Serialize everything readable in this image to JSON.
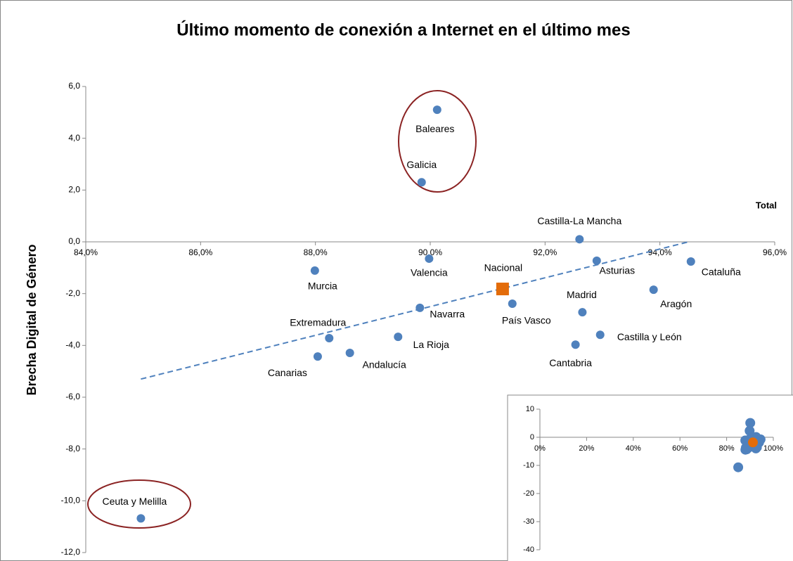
{
  "chart_data": [
    {
      "type": "scatter",
      "title": "Último momento de conexión a Internet en el último mes",
      "y_label": "Brecha Digital de Género",
      "annotation": "Total",
      "xlim": [
        84,
        96
      ],
      "xticks": [
        {
          "value": 84,
          "label": "84,0%"
        },
        {
          "value": 86,
          "label": "86,0%"
        },
        {
          "value": 88,
          "label": "88,0%"
        },
        {
          "value": 90,
          "label": "90,0%"
        },
        {
          "value": 92,
          "label": "92,0%"
        },
        {
          "value": 94,
          "label": "94,0%"
        },
        {
          "value": 96,
          "label": "96,0%"
        }
      ],
      "ylim": [
        -12,
        6
      ],
      "yticks": [
        {
          "value": 6,
          "label": "6,0"
        },
        {
          "value": 4,
          "label": "4,0"
        },
        {
          "value": 2,
          "label": "2,0"
        },
        {
          "value": 0,
          "label": "0,0"
        },
        {
          "value": -2,
          "label": "-2,0"
        },
        {
          "value": -4,
          "label": "-4,0"
        },
        {
          "value": -6,
          "label": "-6,0"
        },
        {
          "value": -8,
          "label": "-8,0"
        },
        {
          "value": -10,
          "label": "-10,0"
        },
        {
          "value": -12,
          "label": "-12,0"
        }
      ],
      "series": [
        {
          "color": "#4f81bd",
          "marker": "circle",
          "labels": [
            "Baleares",
            "Galicia",
            "Castilla-La Mancha",
            "Valencia",
            "Asturias",
            "Cataluña",
            "Murcia",
            "Aragón",
            "País Vasco",
            "Navarra",
            "Madrid",
            "Extremadura",
            "La Rioja",
            "Castilla y León",
            "Cantabria",
            "Andalucía",
            "Canarias",
            "Ceuta y Melilla"
          ],
          "x": [
            90.12,
            89.85,
            92.6,
            89.98,
            92.9,
            94.54,
            87.99,
            93.89,
            91.43,
            89.82,
            92.65,
            88.24,
            89.44,
            92.96,
            92.53,
            88.6,
            88.04,
            84.96
          ],
          "values": [
            5.1,
            2.3,
            0.1,
            -0.65,
            -0.73,
            -0.76,
            -1.11,
            -1.85,
            -2.39,
            -2.55,
            -2.72,
            -3.72,
            -3.67,
            -3.59,
            -3.97,
            -4.29,
            -4.43,
            -10.68
          ]
        },
        {
          "color": "#e36c0a",
          "marker": "square",
          "labels": [
            "Nacional"
          ],
          "x": [
            91.26
          ],
          "values": [
            -1.82
          ]
        }
      ],
      "trendline": {
        "color": "#4f81bd",
        "x": [
          84.96,
          94.5
        ],
        "values": [
          -5.3,
          0
        ]
      }
    },
    {
      "type": "scatter",
      "xlim": [
        0,
        100
      ],
      "xticks": [
        {
          "value": 0,
          "label": "0%"
        },
        {
          "value": 20,
          "label": "20%"
        },
        {
          "value": 40,
          "label": "40%"
        },
        {
          "value": 60,
          "label": "60%"
        },
        {
          "value": 80,
          "label": "80%"
        },
        {
          "value": 100,
          "label": "100%"
        }
      ],
      "ylim": [
        -40,
        10
      ],
      "yticks": [
        10,
        0,
        -10,
        -20,
        -30,
        -40
      ]
    }
  ]
}
